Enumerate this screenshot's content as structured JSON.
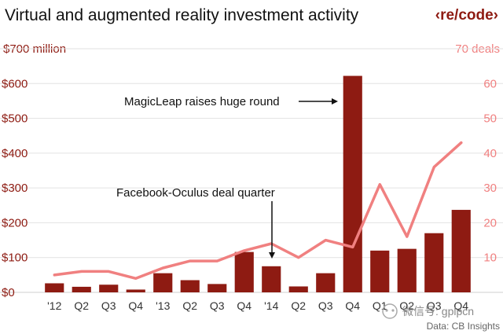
{
  "header": {
    "title": "Virtual and augmented reality investment activity",
    "brand": "‹re/code›"
  },
  "axes": {
    "left_unit": "$700 million",
    "right_unit": "70 deals",
    "left_ticks": [
      "$0",
      "$100",
      "$200",
      "$300",
      "$400",
      "$500",
      "$600"
    ],
    "right_ticks": [
      "10",
      "20",
      "30",
      "40",
      "50",
      "60"
    ]
  },
  "annotations": {
    "magicleap": "MagicLeap raises huge round",
    "facebook": "Facebook-Oculus deal quarter"
  },
  "source": "Data: CB Insights",
  "watermark": "微信号: gplpcn",
  "colors": {
    "bars": "#8e1b12",
    "line": "#f08080",
    "grid": "#e2e2e2"
  },
  "chart_data": {
    "type": "bar",
    "title": "Virtual and augmented reality investment activity",
    "categories": [
      "'12",
      "Q2",
      "Q3",
      "Q4",
      "'13",
      "Q2",
      "Q3",
      "Q4",
      "'14",
      "Q2",
      "Q3",
      "Q4",
      "Q1",
      "Q2",
      "Q3",
      "Q4"
    ],
    "series": [
      {
        "kind": "bar",
        "axis": "left",
        "values": [
          26,
          16,
          22,
          8,
          55,
          35,
          24,
          116,
          75,
          17,
          55,
          622,
          120,
          125,
          170,
          237
        ]
      },
      {
        "kind": "line",
        "axis": "right",
        "values": [
          5,
          6,
          6,
          4,
          7,
          9,
          9,
          12,
          14,
          10,
          15,
          13,
          31,
          16,
          36,
          43
        ]
      }
    ],
    "ylim_left": [
      0,
      700
    ],
    "ylim_right": [
      0,
      70
    ],
    "ylabel_left": "$700 million",
    "ylabel_right": "70 deals",
    "grid": true,
    "source": "Data: CB Insights"
  }
}
